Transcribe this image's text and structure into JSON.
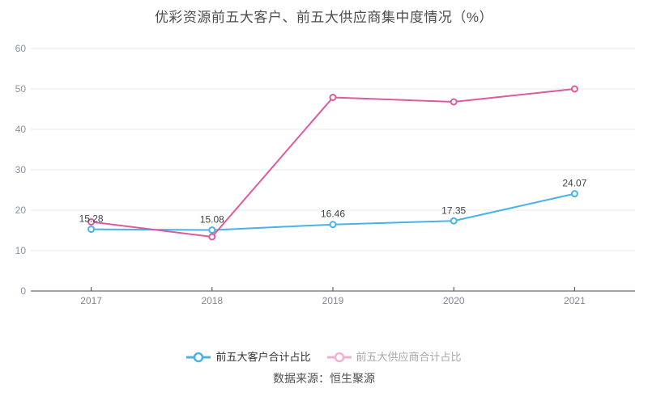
{
  "page": {
    "background": "#ffffff"
  },
  "chart_data": {
    "type": "line",
    "title": "优彩资源前五大客户、前五大供应商集中度情况（%）",
    "categories": [
      "2017",
      "2018",
      "2019",
      "2020",
      "2021"
    ],
    "series": [
      {
        "name": "前五大客户合计占比",
        "values": [
          15.28,
          15.08,
          16.46,
          17.35,
          24.07
        ],
        "color": "#49b2e8",
        "show_labels": true
      },
      {
        "name": "前五大供应商合计占比",
        "values": [
          17.1,
          13.4,
          47.9,
          46.8,
          50.0
        ],
        "color": "#dc5a9e",
        "show_labels": false
      }
    ],
    "ylim": [
      0,
      60
    ],
    "y_ticks": [
      0,
      10,
      20,
      30,
      40,
      50,
      60
    ],
    "grid": "horizontal",
    "legend_position": "bottom",
    "marker_style": "hollow-circle"
  },
  "legend": {
    "items": [
      {
        "label": "前五大客户合计占比",
        "marker_color": "#49b2e8",
        "text_color": "#333333"
      },
      {
        "label": "前五大供应商合计占比",
        "marker_color": "#f2afd4",
        "text_color": "#a8a8a8"
      }
    ]
  },
  "footer": {
    "source_label": "数据来源：恒生聚源"
  },
  "colors": {
    "title": "#4d4d4d",
    "axis_line": "#45484d",
    "grid_line": "#e4eaf2",
    "tick_label": "#8c929c",
    "x_label": "#82878f",
    "data_label": "#3f4347",
    "point_fill": "#ffffff"
  }
}
